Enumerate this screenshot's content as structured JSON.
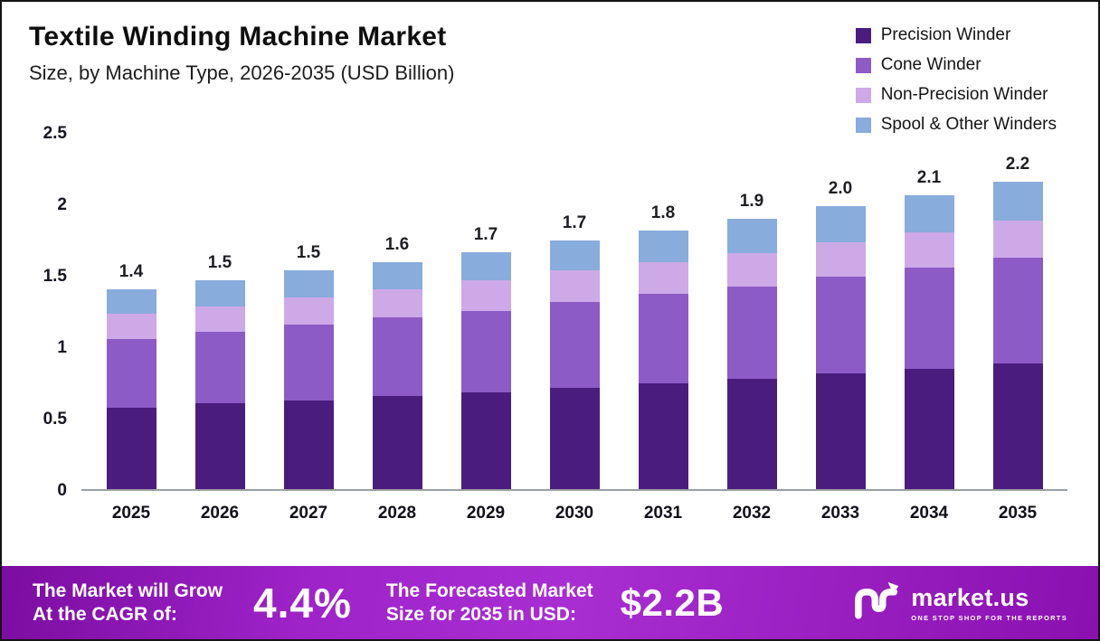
{
  "chart_data": {
    "type": "bar",
    "stacked": true,
    "title": "Textile Winding Machine Market",
    "subtitle": "Size, by Machine Type, 2026-2035 (USD Billion)",
    "legend_position": "top-right",
    "grid": false,
    "categories": [
      "2025",
      "2026",
      "2027",
      "2028",
      "2029",
      "2030",
      "2031",
      "2032",
      "2033",
      "2034",
      "2035"
    ],
    "series": [
      {
        "name": "Precision Winder",
        "color": "#4a1c7e",
        "values": [
          0.57,
          0.6,
          0.62,
          0.65,
          0.68,
          0.71,
          0.74,
          0.77,
          0.81,
          0.84,
          0.88
        ]
      },
      {
        "name": "Cone Winder",
        "color": "#8c5bc6",
        "values": [
          0.48,
          0.5,
          0.53,
          0.55,
          0.57,
          0.6,
          0.63,
          0.65,
          0.68,
          0.71,
          0.74
        ]
      },
      {
        "name": "Non-Precision Winder",
        "color": "#cda9e8",
        "values": [
          0.18,
          0.18,
          0.19,
          0.2,
          0.21,
          0.22,
          0.22,
          0.23,
          0.24,
          0.25,
          0.26
        ]
      },
      {
        "name": "Spool & Other Winders",
        "color": "#88acdc",
        "values": [
          0.17,
          0.18,
          0.19,
          0.19,
          0.2,
          0.21,
          0.22,
          0.24,
          0.25,
          0.26,
          0.27
        ]
      }
    ],
    "totals_labels": [
      "1.4",
      "1.5",
      "1.5",
      "1.6",
      "1.7",
      "1.7",
      "1.8",
      "1.9",
      "2.0",
      "2.1",
      "2.2"
    ],
    "ylim": [
      0,
      2.5
    ],
    "yticks": [
      {
        "value": 0,
        "label": "0"
      },
      {
        "value": 0.5,
        "label": "0.5"
      },
      {
        "value": 1,
        "label": "1"
      },
      {
        "value": 1.5,
        "label": "1.5"
      },
      {
        "value": 2,
        "label": "2"
      },
      {
        "value": 2.5,
        "label": "2.5"
      }
    ],
    "xlabel": "",
    "ylabel": ""
  },
  "footer": {
    "cagr_label": "The Market will Grow\nAt the CAGR of:",
    "cagr_value": "4.4%",
    "forecast_label": "The Forecasted Market\nSize for 2035 in USD:",
    "forecast_value": "$2.2B",
    "brand_name": "market.us",
    "brand_tagline": "ONE STOP SHOP FOR THE REPORTS"
  }
}
